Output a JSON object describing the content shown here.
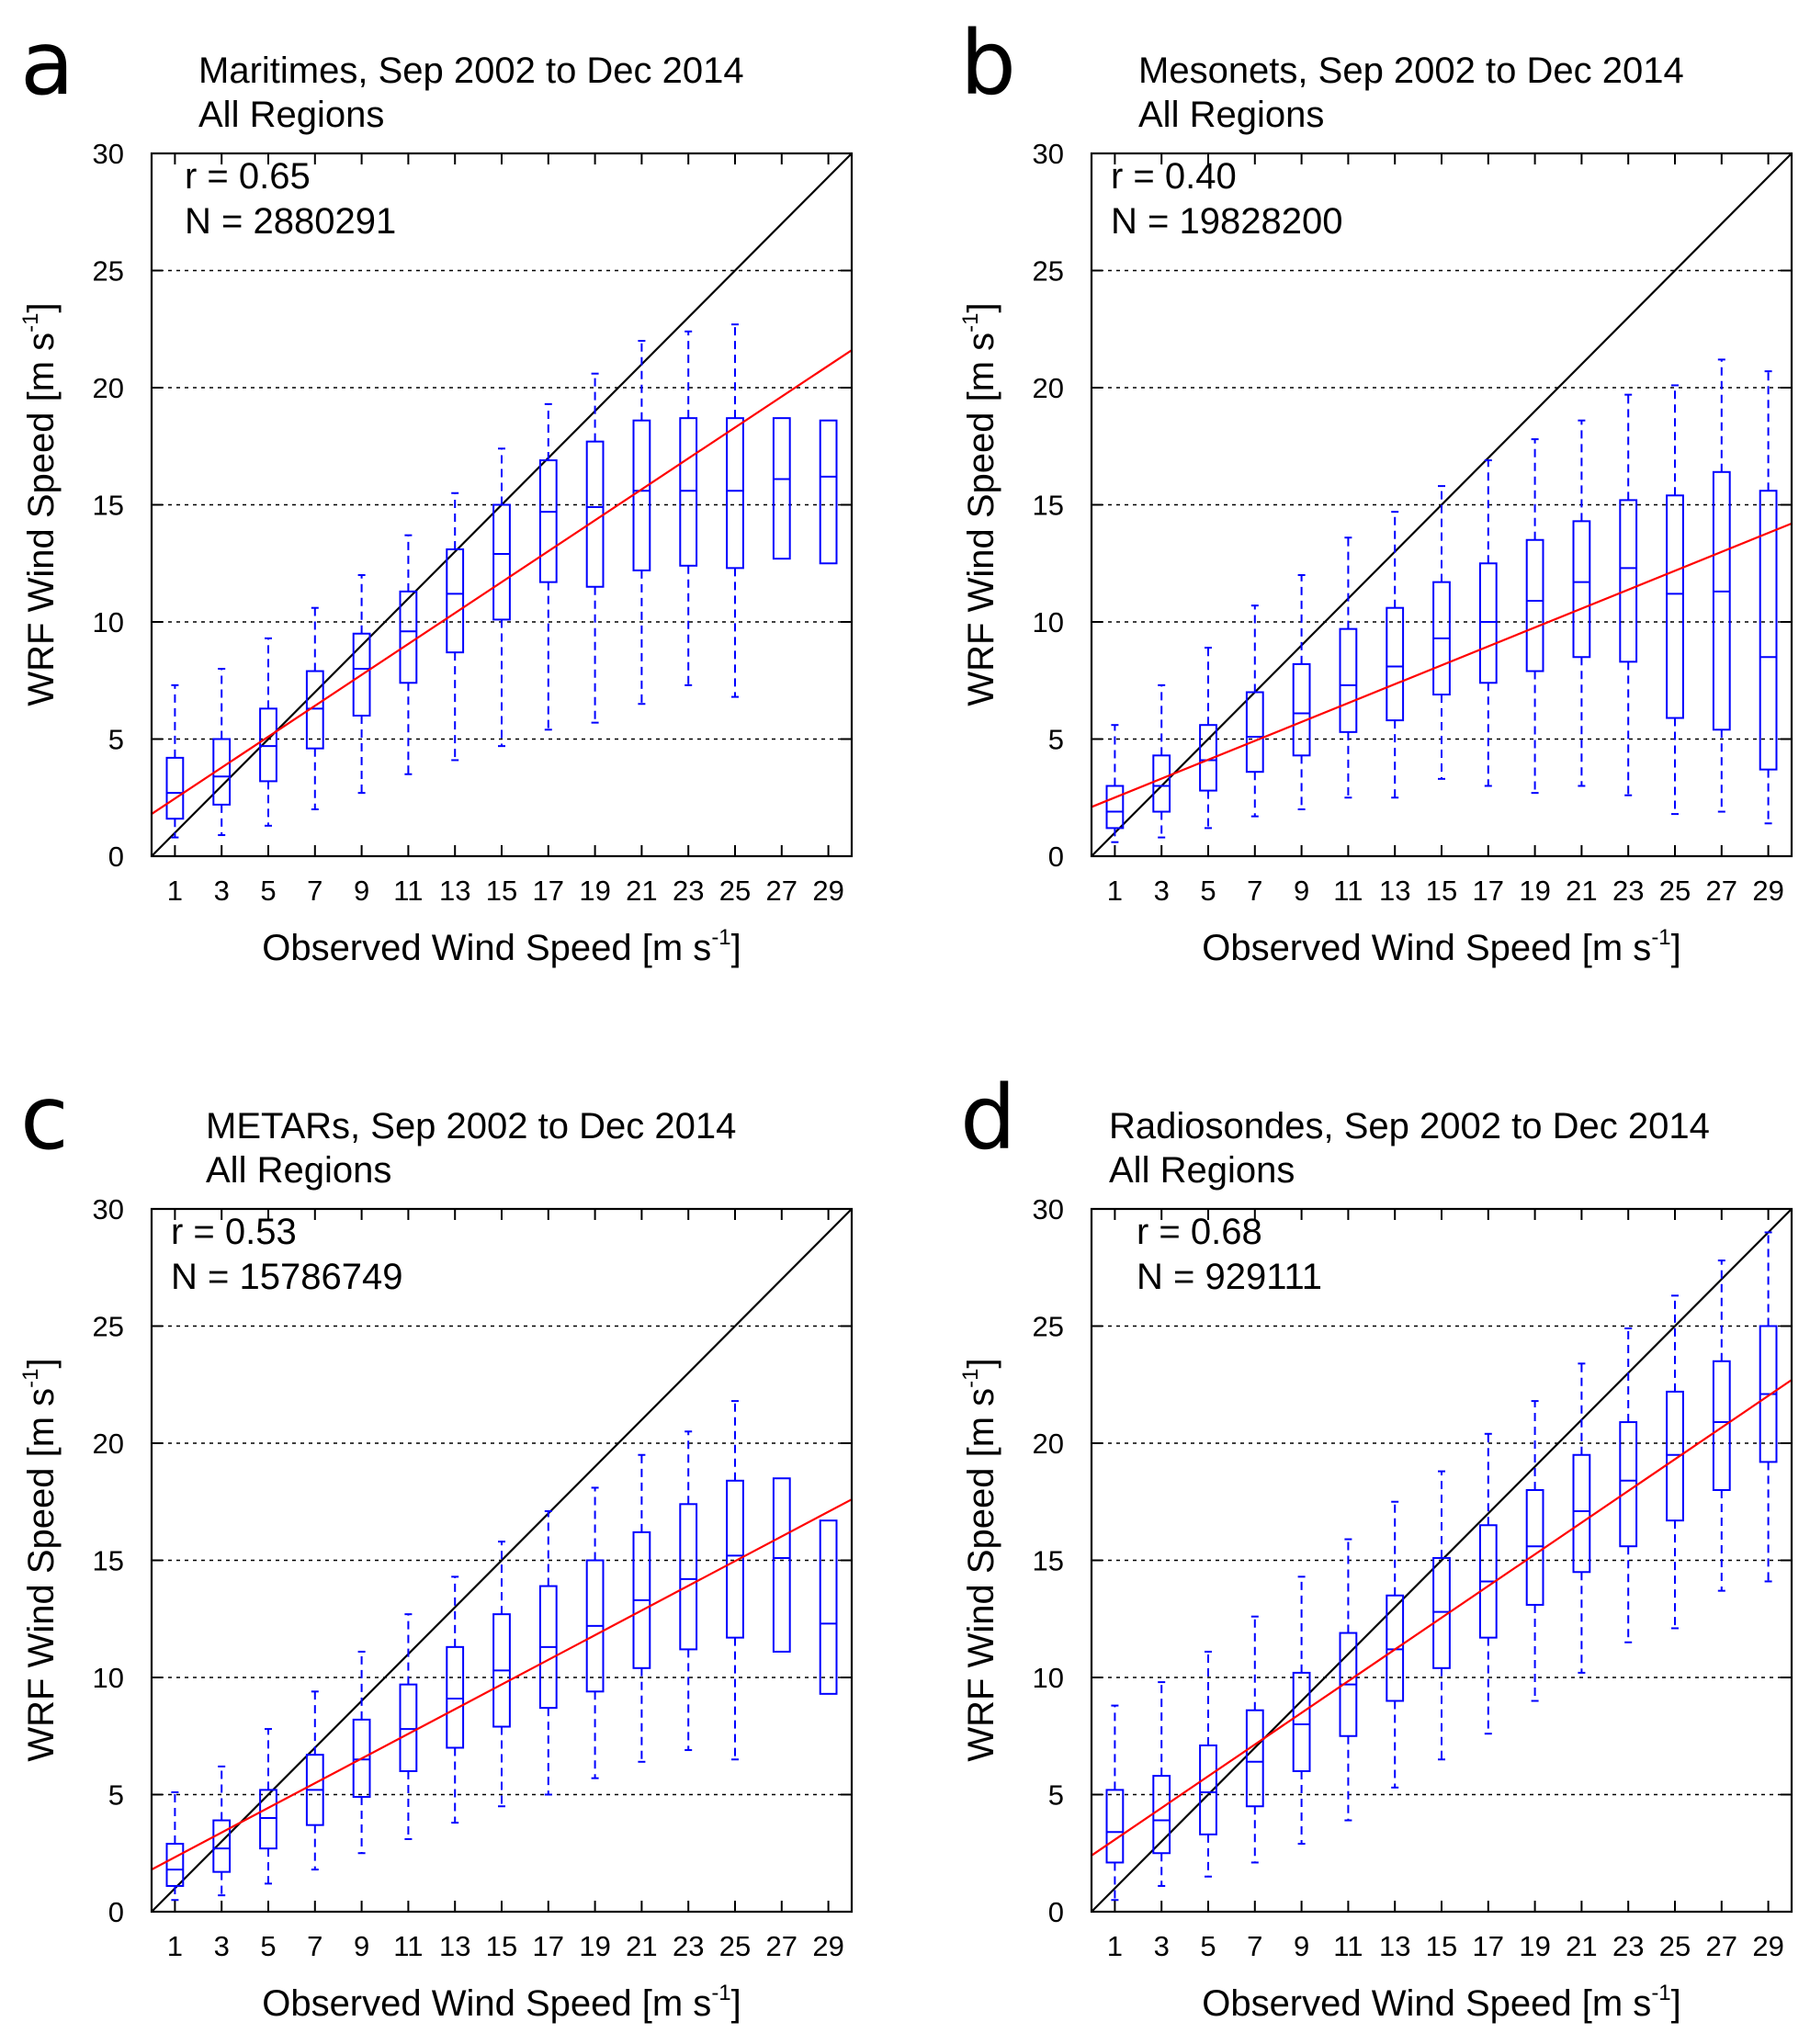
{
  "figure": {
    "x_label": "Observed Wind Speed [m s",
    "y_label": "WRF Wind Speed [m s",
    "unit_superscript": "-1",
    "unit_close": "]"
  },
  "colors": {
    "box": "#0000ff",
    "fit": "#ff0000",
    "one_to_one": "#000000",
    "grid": "#000000"
  },
  "chart_data": [
    {
      "panel": "a",
      "type": "box",
      "title": "Maritimes, Sep 2002 to Dec 2014",
      "subtitle": "All Regions",
      "r_label": "r = 0.65",
      "n_label": "N = 2880291",
      "xlim": [
        0,
        30
      ],
      "ylim": [
        0,
        30
      ],
      "x_ticks": [
        1,
        3,
        5,
        7,
        9,
        11,
        13,
        15,
        17,
        19,
        21,
        23,
        25,
        27,
        29
      ],
      "y_ticks": [
        0,
        5,
        10,
        15,
        20,
        25,
        30
      ],
      "gridlines_y": [
        5,
        10,
        15,
        20,
        25
      ],
      "fit_line": [
        [
          0,
          1.8
        ],
        [
          30,
          21.6
        ]
      ],
      "one_to_one": [
        [
          0,
          0
        ],
        [
          30,
          30
        ]
      ],
      "boxes": [
        {
          "x": 1,
          "whisker_low": 0.8,
          "q1": 1.6,
          "median": 2.7,
          "q3": 4.2,
          "whisker_high": 7.3
        },
        {
          "x": 3,
          "whisker_low": 0.9,
          "q1": 2.2,
          "median": 3.4,
          "q3": 5.0,
          "whisker_high": 8.0
        },
        {
          "x": 5,
          "whisker_low": 1.3,
          "q1": 3.2,
          "median": 4.7,
          "q3": 6.3,
          "whisker_high": 9.3
        },
        {
          "x": 7,
          "whisker_low": 2.0,
          "q1": 4.6,
          "median": 6.3,
          "q3": 7.9,
          "whisker_high": 10.6
        },
        {
          "x": 9,
          "whisker_low": 2.7,
          "q1": 6.0,
          "median": 8.0,
          "q3": 9.5,
          "whisker_high": 12.0
        },
        {
          "x": 11,
          "whisker_low": 3.5,
          "q1": 7.4,
          "median": 9.6,
          "q3": 11.3,
          "whisker_high": 13.7
        },
        {
          "x": 13,
          "whisker_low": 4.1,
          "q1": 8.7,
          "median": 11.2,
          "q3": 13.1,
          "whisker_high": 15.5
        },
        {
          "x": 15,
          "whisker_low": 4.7,
          "q1": 10.1,
          "median": 12.9,
          "q3": 15.0,
          "whisker_high": 17.4
        },
        {
          "x": 17,
          "whisker_low": 5.4,
          "q1": 11.7,
          "median": 14.7,
          "q3": 16.9,
          "whisker_high": 19.3
        },
        {
          "x": 19,
          "whisker_low": 5.7,
          "q1": 11.5,
          "median": 14.9,
          "q3": 17.7,
          "whisker_high": 20.6
        },
        {
          "x": 21,
          "whisker_low": 6.5,
          "q1": 12.2,
          "median": 15.6,
          "q3": 18.6,
          "whisker_high": 22.0
        },
        {
          "x": 23,
          "whisker_low": 7.3,
          "q1": 12.4,
          "median": 15.6,
          "q3": 18.7,
          "whisker_high": 22.4
        },
        {
          "x": 25,
          "whisker_low": 6.8,
          "q1": 12.3,
          "median": 15.6,
          "q3": 18.7,
          "whisker_high": 22.7
        },
        {
          "x": 27,
          "q1": 12.7,
          "median": 16.1,
          "q3": 18.7
        },
        {
          "x": 29,
          "q1": 12.5,
          "median": 16.2,
          "q3": 18.6
        }
      ]
    },
    {
      "panel": "b",
      "type": "box",
      "title": "Mesonets, Sep 2002 to Dec 2014",
      "subtitle": "All Regions",
      "r_label": "r = 0.40",
      "n_label": "N = 19828200",
      "xlim": [
        0,
        30
      ],
      "ylim": [
        0,
        30
      ],
      "x_ticks": [
        1,
        3,
        5,
        7,
        9,
        11,
        13,
        15,
        17,
        19,
        21,
        23,
        25,
        27,
        29
      ],
      "y_ticks": [
        0,
        5,
        10,
        15,
        20,
        25,
        30
      ],
      "gridlines_y": [
        5,
        10,
        15,
        20,
        25
      ],
      "fit_line": [
        [
          0,
          2.1
        ],
        [
          30,
          14.2
        ]
      ],
      "one_to_one": [
        [
          0,
          0
        ],
        [
          30,
          30
        ]
      ],
      "boxes": [
        {
          "x": 1,
          "whisker_low": 0.6,
          "q1": 1.2,
          "median": 1.9,
          "q3": 3.0,
          "whisker_high": 5.6
        },
        {
          "x": 3,
          "whisker_low": 0.8,
          "q1": 1.9,
          "median": 3.0,
          "q3": 4.3,
          "whisker_high": 7.3
        },
        {
          "x": 5,
          "whisker_low": 1.2,
          "q1": 2.8,
          "median": 4.1,
          "q3": 5.6,
          "whisker_high": 8.9
        },
        {
          "x": 7,
          "whisker_low": 1.7,
          "q1": 3.6,
          "median": 5.1,
          "q3": 7.0,
          "whisker_high": 10.7
        },
        {
          "x": 9,
          "whisker_low": 2.0,
          "q1": 4.3,
          "median": 6.1,
          "q3": 8.2,
          "whisker_high": 12.0
        },
        {
          "x": 11,
          "whisker_low": 2.5,
          "q1": 5.3,
          "median": 7.3,
          "q3": 9.7,
          "whisker_high": 13.6
        },
        {
          "x": 13,
          "whisker_low": 2.5,
          "q1": 5.8,
          "median": 8.1,
          "q3": 10.6,
          "whisker_high": 14.7
        },
        {
          "x": 15,
          "whisker_low": 3.3,
          "q1": 6.9,
          "median": 9.3,
          "q3": 11.7,
          "whisker_high": 15.8
        },
        {
          "x": 17,
          "whisker_low": 3.0,
          "q1": 7.4,
          "median": 10.0,
          "q3": 12.5,
          "whisker_high": 16.9
        },
        {
          "x": 19,
          "whisker_low": 2.7,
          "q1": 7.9,
          "median": 10.9,
          "q3": 13.5,
          "whisker_high": 17.8
        },
        {
          "x": 21,
          "whisker_low": 3.0,
          "q1": 8.5,
          "median": 11.7,
          "q3": 14.3,
          "whisker_high": 18.6
        },
        {
          "x": 23,
          "whisker_low": 2.6,
          "q1": 8.3,
          "median": 12.3,
          "q3": 15.2,
          "whisker_high": 19.7
        },
        {
          "x": 25,
          "whisker_low": 1.8,
          "q1": 5.9,
          "median": 11.2,
          "q3": 15.4,
          "whisker_high": 20.1
        },
        {
          "x": 27,
          "whisker_low": 1.9,
          "q1": 5.4,
          "median": 11.3,
          "q3": 16.4,
          "whisker_high": 21.2
        },
        {
          "x": 29,
          "whisker_low": 1.4,
          "q1": 3.7,
          "median": 8.5,
          "q3": 15.6,
          "whisker_high": 20.7
        }
      ]
    },
    {
      "panel": "c",
      "type": "box",
      "title": "METARs, Sep 2002 to Dec 2014",
      "subtitle": "All Regions",
      "r_label": "r = 0.53",
      "n_label": "N = 15786749",
      "xlim": [
        0,
        30
      ],
      "ylim": [
        0,
        30
      ],
      "x_ticks": [
        1,
        3,
        5,
        7,
        9,
        11,
        13,
        15,
        17,
        19,
        21,
        23,
        25,
        27,
        29
      ],
      "y_ticks": [
        0,
        5,
        10,
        15,
        20,
        25,
        30
      ],
      "gridlines_y": [
        5,
        10,
        15,
        20,
        25
      ],
      "fit_line": [
        [
          0,
          1.8
        ],
        [
          30,
          17.6
        ]
      ],
      "one_to_one": [
        [
          0,
          0
        ],
        [
          30,
          30
        ]
      ],
      "boxes": [
        {
          "x": 1,
          "whisker_low": 0.5,
          "q1": 1.1,
          "median": 1.8,
          "q3": 2.9,
          "whisker_high": 5.1
        },
        {
          "x": 3,
          "whisker_low": 0.7,
          "q1": 1.7,
          "median": 2.7,
          "q3": 3.9,
          "whisker_high": 6.2
        },
        {
          "x": 5,
          "whisker_low": 1.2,
          "q1": 2.7,
          "median": 4.0,
          "q3": 5.2,
          "whisker_high": 7.8
        },
        {
          "x": 7,
          "whisker_low": 1.8,
          "q1": 3.7,
          "median": 5.2,
          "q3": 6.7,
          "whisker_high": 9.4
        },
        {
          "x": 9,
          "whisker_low": 2.5,
          "q1": 4.9,
          "median": 6.5,
          "q3": 8.2,
          "whisker_high": 11.1
        },
        {
          "x": 11,
          "whisker_low": 3.1,
          "q1": 6.0,
          "median": 7.8,
          "q3": 9.7,
          "whisker_high": 12.7
        },
        {
          "x": 13,
          "whisker_low": 3.8,
          "q1": 7.0,
          "median": 9.1,
          "q3": 11.3,
          "whisker_high": 14.3
        },
        {
          "x": 15,
          "whisker_low": 4.5,
          "q1": 7.9,
          "median": 10.3,
          "q3": 12.7,
          "whisker_high": 15.8
        },
        {
          "x": 17,
          "whisker_low": 5.0,
          "q1": 8.7,
          "median": 11.3,
          "q3": 13.9,
          "whisker_high": 17.1
        },
        {
          "x": 19,
          "whisker_low": 5.7,
          "q1": 9.4,
          "median": 12.2,
          "q3": 15.0,
          "whisker_high": 18.1
        },
        {
          "x": 21,
          "whisker_low": 6.4,
          "q1": 10.4,
          "median": 13.3,
          "q3": 16.2,
          "whisker_high": 19.5
        },
        {
          "x": 23,
          "whisker_low": 6.9,
          "q1": 11.2,
          "median": 14.2,
          "q3": 17.4,
          "whisker_high": 20.5
        },
        {
          "x": 25,
          "whisker_low": 6.5,
          "q1": 11.7,
          "median": 15.2,
          "q3": 18.4,
          "whisker_high": 21.8
        },
        {
          "x": 27,
          "q1": 11.1,
          "median": 15.1,
          "q3": 18.5
        },
        {
          "x": 29,
          "q1": 9.3,
          "median": 12.3,
          "q3": 16.7
        }
      ]
    },
    {
      "panel": "d",
      "type": "box",
      "title": "Radiosondes, Sep 2002 to Dec 2014",
      "subtitle": "All Regions",
      "r_label": "r = 0.68",
      "n_label": "N = 929111",
      "xlim": [
        0,
        30
      ],
      "ylim": [
        0,
        30
      ],
      "x_ticks": [
        1,
        3,
        5,
        7,
        9,
        11,
        13,
        15,
        17,
        19,
        21,
        23,
        25,
        27,
        29
      ],
      "y_ticks": [
        0,
        5,
        10,
        15,
        20,
        25,
        30
      ],
      "gridlines_y": [
        5,
        10,
        15,
        20,
        25
      ],
      "fit_line": [
        [
          0,
          2.4
        ],
        [
          30,
          22.7
        ]
      ],
      "one_to_one": [
        [
          0,
          0
        ],
        [
          30,
          30
        ]
      ],
      "boxes": [
        {
          "x": 1,
          "whisker_low": 0.5,
          "q1": 2.1,
          "median": 3.4,
          "q3": 5.2,
          "whisker_high": 8.8
        },
        {
          "x": 3,
          "whisker_low": 1.1,
          "q1": 2.5,
          "median": 3.9,
          "q3": 5.8,
          "whisker_high": 9.8
        },
        {
          "x": 5,
          "whisker_low": 1.5,
          "q1": 3.3,
          "median": 5.1,
          "q3": 7.1,
          "whisker_high": 11.1
        },
        {
          "x": 7,
          "whisker_low": 2.1,
          "q1": 4.5,
          "median": 6.4,
          "q3": 8.6,
          "whisker_high": 12.6
        },
        {
          "x": 9,
          "whisker_low": 2.9,
          "q1": 6.0,
          "median": 8.0,
          "q3": 10.2,
          "whisker_high": 14.3
        },
        {
          "x": 11,
          "whisker_low": 3.9,
          "q1": 7.5,
          "median": 9.7,
          "q3": 11.9,
          "whisker_high": 15.9
        },
        {
          "x": 13,
          "whisker_low": 5.3,
          "q1": 9.0,
          "median": 11.2,
          "q3": 13.5,
          "whisker_high": 17.5
        },
        {
          "x": 15,
          "whisker_low": 6.5,
          "q1": 10.4,
          "median": 12.8,
          "q3": 15.1,
          "whisker_high": 18.8
        },
        {
          "x": 17,
          "whisker_low": 7.6,
          "q1": 11.7,
          "median": 14.1,
          "q3": 16.5,
          "whisker_high": 20.4
        },
        {
          "x": 19,
          "whisker_low": 9.0,
          "q1": 13.1,
          "median": 15.6,
          "q3": 18.0,
          "whisker_high": 21.8
        },
        {
          "x": 21,
          "whisker_low": 10.2,
          "q1": 14.5,
          "median": 17.1,
          "q3": 19.5,
          "whisker_high": 23.4
        },
        {
          "x": 23,
          "whisker_low": 11.5,
          "q1": 15.6,
          "median": 18.4,
          "q3": 20.9,
          "whisker_high": 24.9
        },
        {
          "x": 25,
          "whisker_low": 12.1,
          "q1": 16.7,
          "median": 19.5,
          "q3": 22.2,
          "whisker_high": 26.3
        },
        {
          "x": 27,
          "whisker_low": 13.7,
          "q1": 18.0,
          "median": 20.9,
          "q3": 23.5,
          "whisker_high": 27.8
        },
        {
          "x": 29,
          "whisker_low": 14.1,
          "q1": 19.2,
          "median": 22.1,
          "q3": 25.0,
          "whisker_high": 29.0
        }
      ]
    }
  ]
}
